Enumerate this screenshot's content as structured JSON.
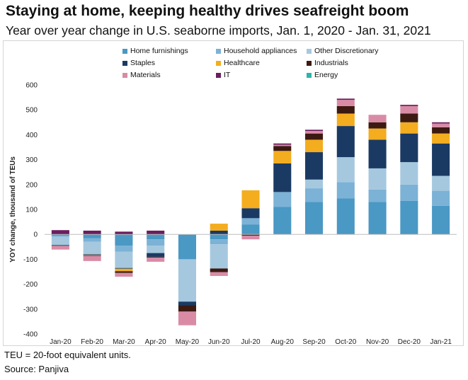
{
  "header": {
    "title": "Staying at home, keeping healthy drives seafreight boom",
    "subtitle": "Year over year change in U.S. seaborne imports, Jan. 1, 2020 - Jan. 31, 2021"
  },
  "footer": {
    "note": "TEU = 20-foot equivalent units.",
    "source": "Source: Panjiva"
  },
  "chart_data": {
    "type": "bar",
    "stacked": true,
    "ylabel": "YOY change, thousand of TEUs",
    "ylim": [
      -400,
      600
    ],
    "yticks": [
      -400,
      -300,
      -200,
      -100,
      0,
      100,
      200,
      300,
      400,
      500,
      600
    ],
    "grid": false,
    "legend_position": "top",
    "categories": [
      "Jan-20",
      "Feb-20",
      "Mar-20",
      "Apr-20",
      "May-20",
      "Jun-20",
      "Jul-20",
      "Aug-20",
      "Sep-20",
      "Oct-20",
      "Nov-20",
      "Dec-20",
      "Jan-21"
    ],
    "series": [
      {
        "name": "Home furnishings",
        "color": "#4a98c4",
        "values": [
          -5,
          -15,
          -45,
          -20,
          -100,
          -20,
          40,
          110,
          130,
          145,
          130,
          135,
          115
        ]
      },
      {
        "name": "Household appliances",
        "color": "#7bb2d6",
        "values": [
          -5,
          -15,
          -25,
          -25,
          0,
          -20,
          25,
          60,
          55,
          65,
          50,
          65,
          60
        ]
      },
      {
        "name": "Other Discretionary",
        "color": "#a5c8df",
        "values": [
          -33,
          -50,
          -65,
          -30,
          -170,
          -97,
          0,
          0,
          35,
          100,
          85,
          90,
          60
        ]
      },
      {
        "name": "Staples",
        "color": "#1b3a63",
        "values": [
          -3,
          -3,
          -3,
          -15,
          -15,
          15,
          40,
          115,
          110,
          125,
          115,
          115,
          130
        ]
      },
      {
        "name": "Healthcare",
        "color": "#f3ad1f",
        "values": [
          0,
          -2,
          -10,
          0,
          0,
          28,
          72,
          50,
          50,
          50,
          45,
          45,
          40
        ]
      },
      {
        "name": "Industrials",
        "color": "#3c1a12",
        "values": [
          0,
          -2,
          -7,
          -3,
          -25,
          -15,
          -5,
          20,
          25,
          30,
          25,
          35,
          25
        ]
      },
      {
        "name": "Materials",
        "color": "#d98ba6",
        "values": [
          -15,
          -20,
          -15,
          -17,
          -55,
          -15,
          -15,
          5,
          10,
          25,
          30,
          30,
          15
        ]
      },
      {
        "name": "IT",
        "color": "#6b1e5e",
        "values": [
          17,
          15,
          11,
          15,
          0,
          0,
          0,
          5,
          5,
          5,
          0,
          5,
          5
        ]
      },
      {
        "name": "Energy",
        "color": "#2cb5ac",
        "values": [
          0,
          0,
          0,
          0,
          0,
          0,
          0,
          0,
          0,
          0,
          0,
          0,
          0
        ]
      }
    ]
  }
}
